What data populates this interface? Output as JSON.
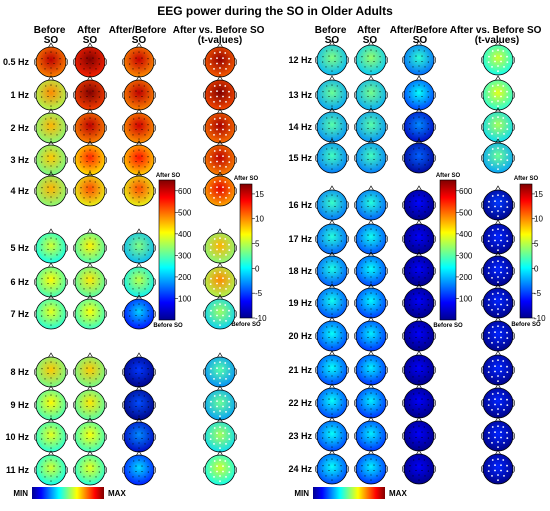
{
  "chart_data": {
    "type": "heatmap",
    "title": "EEG power during the SO in Older Adults",
    "columns": [
      [
        "Before",
        "SO"
      ],
      [
        "After",
        "SO"
      ],
      [
        "After/Before",
        "SO"
      ],
      [
        "After vs. Before SO",
        "(t-values)"
      ]
    ],
    "panels": [
      {
        "name": "left",
        "rows": [
          "0.5 Hz",
          "1 Hz",
          "2 Hz",
          "3 Hz",
          "4 Hz",
          "5 Hz",
          "6 Hz",
          "7 Hz",
          "8 Hz",
          "9 Hz",
          "10 Hz",
          "11 Hz"
        ],
        "before": [
          0.86,
          0.66,
          0.62,
          0.6,
          0.62,
          0.5,
          0.55,
          0.52,
          0.6,
          0.55,
          0.52,
          0.5
        ],
        "after": [
          0.96,
          0.93,
          0.86,
          0.76,
          0.72,
          0.56,
          0.57,
          0.54,
          0.6,
          0.57,
          0.54,
          0.52
        ],
        "ratio": [
          0.85,
          0.86,
          0.84,
          0.78,
          0.72,
          0.42,
          0.48,
          0.25,
          0.1,
          0.12,
          0.18,
          0.26
        ],
        "tvalue": [
          0.9,
          0.92,
          0.88,
          0.86,
          0.82,
          0.62,
          0.66,
          0.45,
          0.38,
          0.4,
          0.46,
          0.5
        ]
      },
      {
        "name": "right",
        "rows": [
          "12 Hz",
          "13 Hz",
          "14 Hz",
          "15 Hz",
          "16 Hz",
          "17 Hz",
          "18 Hz",
          "19 Hz",
          "20 Hz",
          "21 Hz",
          "22 Hz",
          "23 Hz",
          "24 Hz"
        ],
        "before": [
          0.42,
          0.4,
          0.38,
          0.36,
          0.35,
          0.33,
          0.32,
          0.31,
          0.3,
          0.3,
          0.3,
          0.3,
          0.3
        ],
        "after": [
          0.44,
          0.41,
          0.38,
          0.36,
          0.33,
          0.31,
          0.3,
          0.29,
          0.28,
          0.28,
          0.28,
          0.28,
          0.28
        ],
        "ratio": [
          0.34,
          0.3,
          0.18,
          0.14,
          0.05,
          0.04,
          0.04,
          0.04,
          0.04,
          0.04,
          0.04,
          0.04,
          0.04
        ],
        "tvalue": [
          0.5,
          0.52,
          0.46,
          0.4,
          0.1,
          0.08,
          0.08,
          0.08,
          0.08,
          0.08,
          0.08,
          0.08,
          0.08
        ]
      }
    ],
    "colorbars": {
      "power": {
        "top_label": "After SO",
        "bottom_label": "Before SO",
        "ticks": [
          100,
          200,
          300,
          400,
          500,
          600
        ],
        "range": [
          0,
          650
        ]
      },
      "tvalues": {
        "top_label": "After SO",
        "bottom_label": "Before SO",
        "ticks": [
          -10,
          -5,
          0,
          5,
          10,
          15
        ],
        "range": [
          -10,
          17
        ]
      }
    },
    "scale_bar": {
      "min_label": "MIN",
      "max_label": "MAX"
    }
  }
}
